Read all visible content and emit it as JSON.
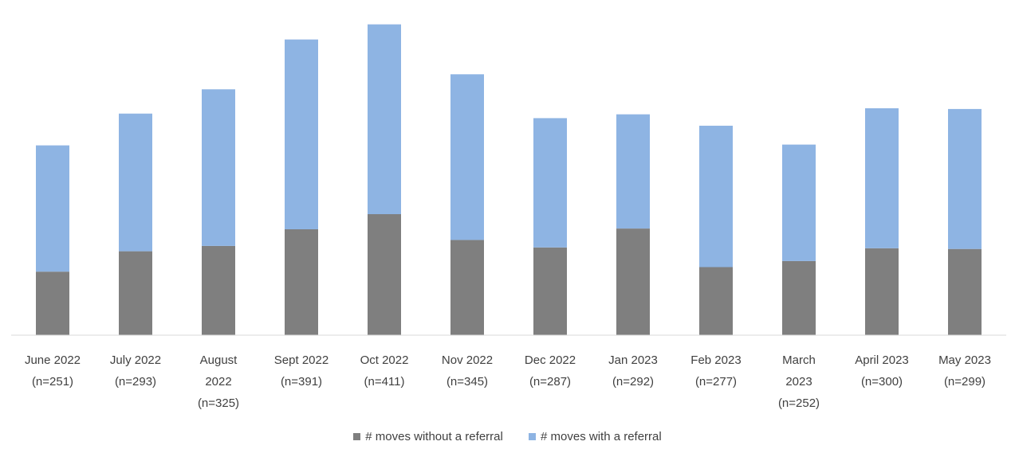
{
  "chart_data": {
    "type": "bar",
    "stacked": true,
    "categories": [
      [
        "June 2022",
        "(n=251)"
      ],
      [
        "July 2022",
        "(n=293)"
      ],
      [
        "August",
        "2022",
        "(n=325)"
      ],
      [
        "Sept 2022",
        "(n=391)"
      ],
      [
        "Oct 2022",
        "(n=411)"
      ],
      [
        "Nov 2022",
        "(n=345)"
      ],
      [
        "Dec 2022",
        "(n=287)"
      ],
      [
        "Jan 2023",
        "(n=292)"
      ],
      [
        "Feb 2023",
        "(n=277)"
      ],
      [
        "March",
        "2023",
        "(n=252)"
      ],
      [
        "April 2023",
        "(n=300)"
      ],
      [
        "May 2023",
        "(n=299)"
      ]
    ],
    "totals": [
      251,
      293,
      325,
      391,
      411,
      345,
      287,
      292,
      277,
      252,
      300,
      299
    ],
    "series": [
      {
        "name": "# moves without a referral",
        "color": "#7f7f7f",
        "values": [
          84,
          111,
          118,
          140,
          160,
          126,
          116,
          141,
          90,
          98,
          115,
          114
        ]
      },
      {
        "name": "# moves with a referral",
        "color": "#8eb4e3",
        "values": [
          167,
          182,
          207,
          251,
          251,
          219,
          171,
          151,
          187,
          154,
          185,
          185
        ]
      }
    ],
    "ylim": [
      0,
      420
    ],
    "grid": false,
    "legend_position": "bottom"
  }
}
